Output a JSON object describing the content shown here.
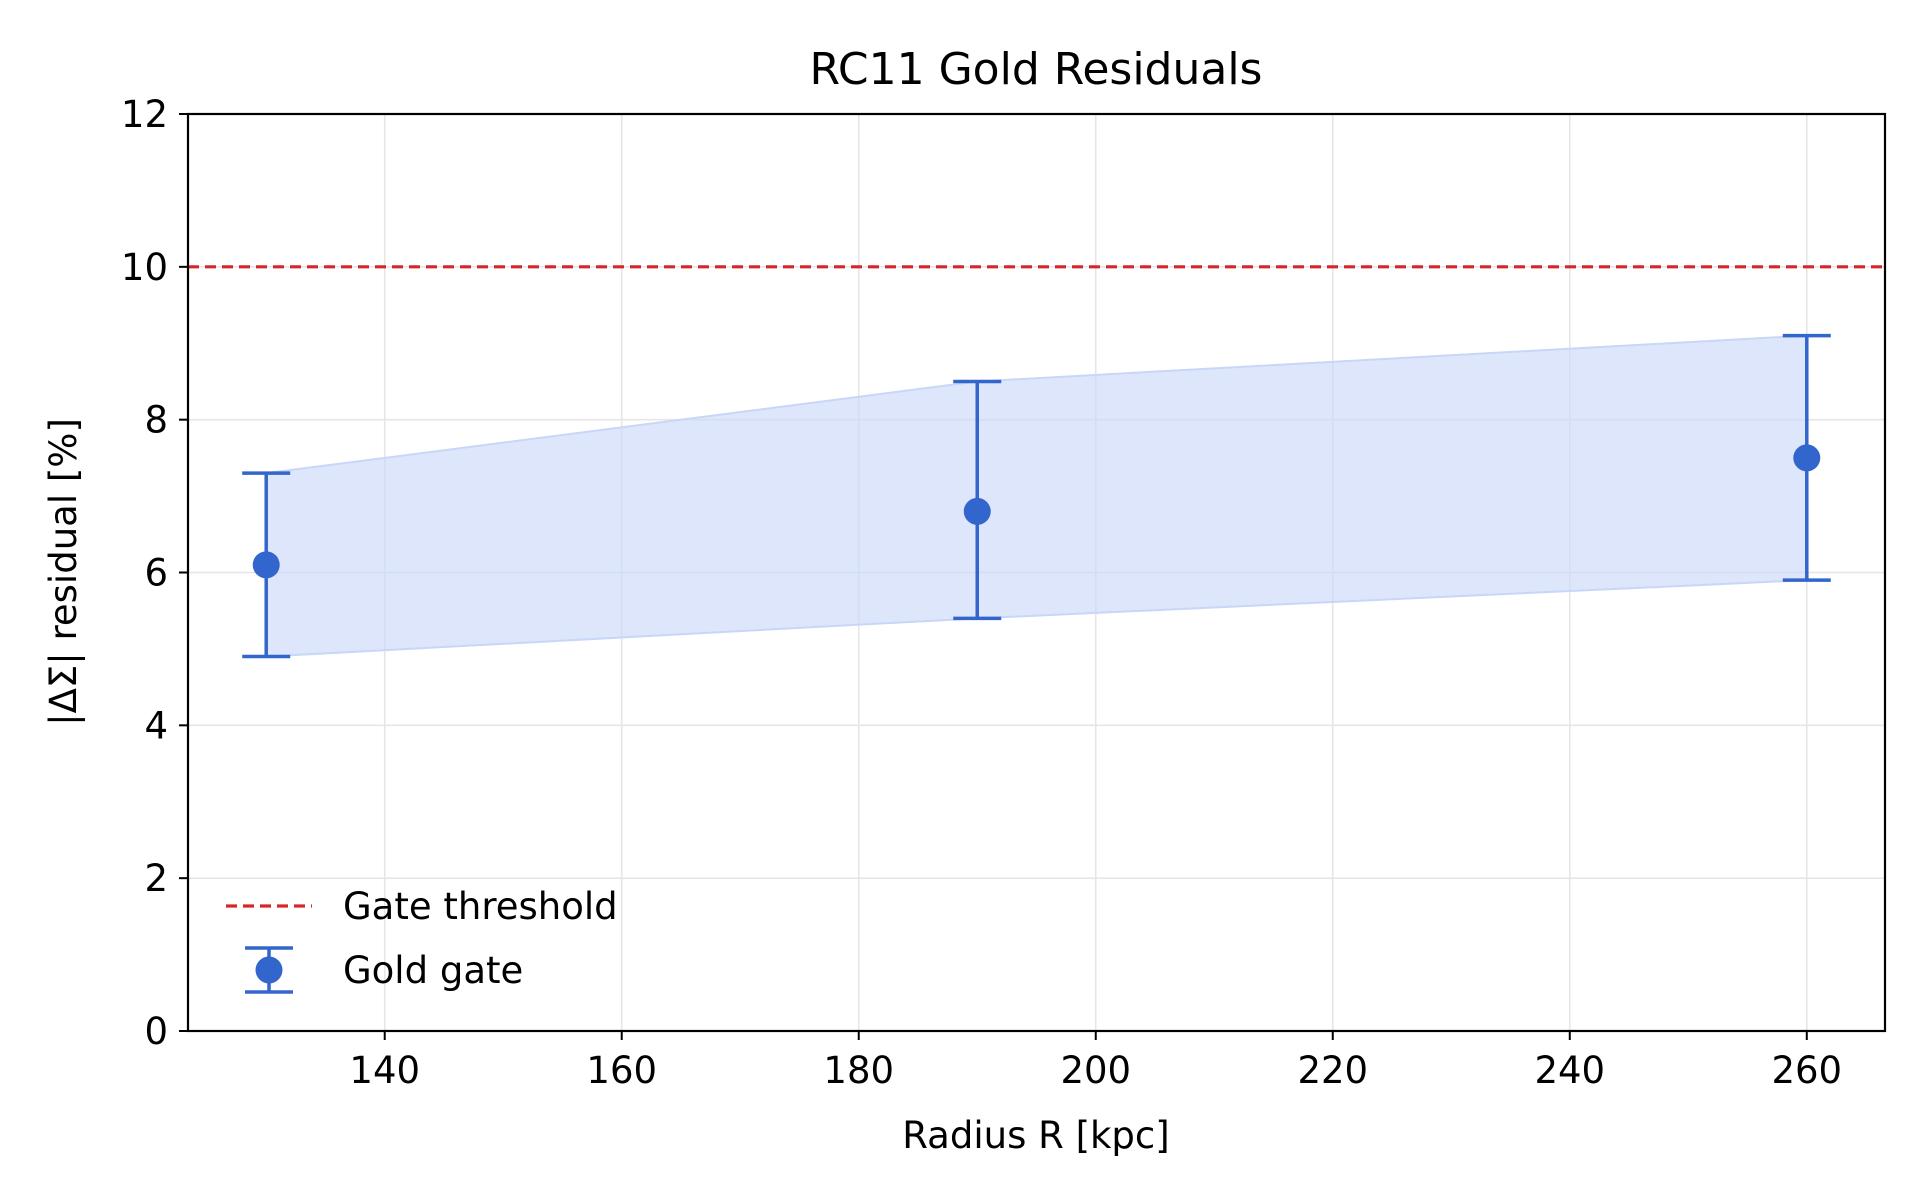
{
  "chart_data": {
    "type": "scatter",
    "title": "RC11 Gold Residuals",
    "xlabel": "Radius R [kpc]",
    "ylabel": "|ΔΣ| residual [%]",
    "xlim": [
      123.4,
      266.6
    ],
    "ylim": [
      0,
      12
    ],
    "xticks": [
      140,
      160,
      180,
      200,
      220,
      240,
      260
    ],
    "yticks": [
      0,
      2,
      4,
      6,
      8,
      10,
      12
    ],
    "grid": true,
    "legend_position": "lower-left",
    "threshold": {
      "name": "Gate threshold",
      "y": 10,
      "color": "#d62728",
      "style": "dashed"
    },
    "series": [
      {
        "name": "Gold gate",
        "color": "#3366cc",
        "band_color": "#c8d7f8",
        "x": [
          130,
          190,
          260
        ],
        "y": [
          6.1,
          6.8,
          7.5
        ],
        "lower": [
          4.9,
          5.4,
          5.9
        ],
        "upper": [
          7.3,
          8.5,
          9.1
        ]
      }
    ]
  }
}
